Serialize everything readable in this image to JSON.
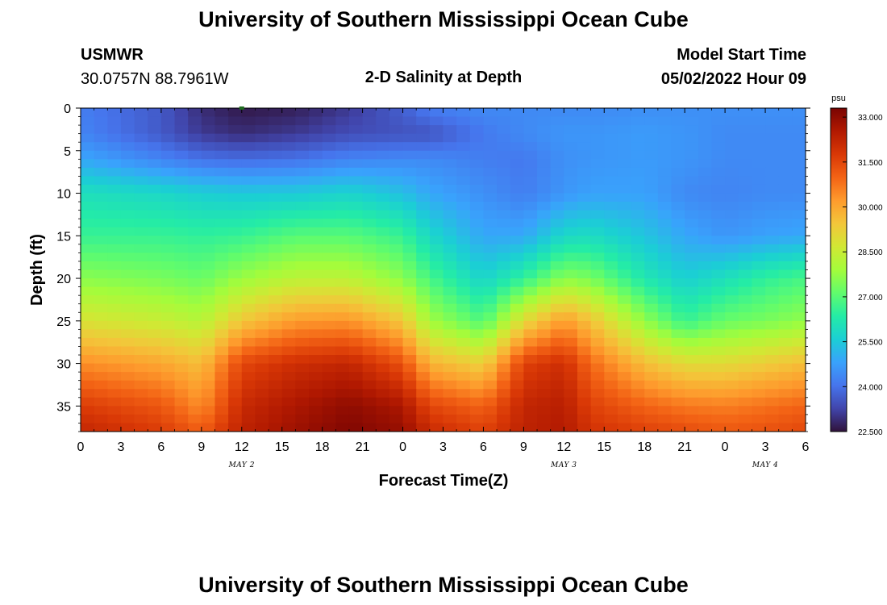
{
  "page": {
    "title": "University of Southern Mississippi Ocean Cube",
    "footer_title": "University of Southern Mississippi Ocean Cube"
  },
  "station": {
    "id": "USMWR",
    "coords": "30.0757N  88.7961W"
  },
  "model": {
    "label": "Model Start Time",
    "start": "05/02/2022 Hour 09"
  },
  "chart_data": {
    "type": "heatmap",
    "title": "2-D Salinity at Depth",
    "xlabel": "Forecast Time(Z)",
    "ylabel": "Depth (ft)",
    "x_ticks": [
      "0",
      "3",
      "6",
      "9",
      "12",
      "15",
      "18",
      "21",
      "0",
      "3",
      "6",
      "9",
      "12",
      "15",
      "18",
      "21",
      "0",
      "3",
      "6"
    ],
    "x_range_hours": [
      0,
      54
    ],
    "y_ticks": [
      "0",
      "5",
      "10",
      "15",
      "20",
      "25",
      "30",
      "35"
    ],
    "y_range_ft": [
      0,
      38
    ],
    "date_labels": [
      {
        "text": "MAY 2",
        "hour": 12
      },
      {
        "text": "MAY 3",
        "hour": 36
      },
      {
        "text": "MAY 4",
        "hour": 51
      }
    ],
    "colorbar": {
      "unit": "psu",
      "min": 22.5,
      "max": 33.3,
      "tick_labels": [
        "33.000",
        "31.500",
        "30.000",
        "28.500",
        "27.000",
        "25.500",
        "24.000",
        "22.500"
      ],
      "tick_values": [
        33.0,
        31.5,
        30.0,
        28.5,
        27.0,
        25.5,
        24.0,
        22.5
      ],
      "colors": [
        "#30123b",
        "#4145ab",
        "#4675ed",
        "#39a2fc",
        "#1bcfd4",
        "#24eca6",
        "#61fc6c",
        "#a4fc3b",
        "#d1e834",
        "#f3c63a",
        "#fe9b2d",
        "#f36315",
        "#d93806",
        "#b11901",
        "#7a0402"
      ]
    },
    "profile_hours": [
      0,
      6,
      9,
      12,
      16,
      20,
      24,
      26,
      30,
      33,
      36,
      38,
      42,
      45,
      48,
      51,
      54
    ],
    "profile_depths_ft": [
      0,
      3,
      6,
      10,
      15,
      20,
      25,
      30,
      35,
      38
    ],
    "salinity_psu": [
      [
        24.2,
        23.6,
        22.9,
        22.6,
        22.7,
        23.1,
        23.7,
        24.2,
        24.4,
        24.4,
        24.4,
        24.4,
        24.5,
        24.5,
        24.5,
        24.5,
        24.5
      ],
      [
        24.3,
        23.6,
        23.1,
        22.9,
        23.1,
        23.4,
        23.5,
        23.5,
        24.1,
        24.4,
        24.6,
        24.6,
        24.7,
        24.6,
        24.4,
        24.4,
        24.4
      ],
      [
        24.9,
        24.3,
        24.0,
        23.9,
        24.0,
        24.3,
        24.4,
        24.4,
        24.2,
        24.1,
        24.5,
        24.6,
        24.7,
        24.6,
        24.4,
        24.4,
        24.4
      ],
      [
        26.0,
        25.8,
        25.6,
        25.5,
        25.5,
        25.7,
        25.3,
        24.9,
        24.5,
        24.2,
        24.6,
        24.8,
        24.8,
        24.4,
        24.3,
        24.4,
        24.4
      ],
      [
        26.6,
        26.6,
        26.5,
        26.6,
        27.0,
        27.0,
        26.6,
        25.8,
        24.9,
        24.9,
        25.8,
        25.9,
        25.4,
        24.9,
        24.6,
        24.8,
        24.9
      ],
      [
        27.6,
        27.4,
        27.2,
        27.8,
        28.3,
        28.3,
        27.6,
        26.8,
        25.7,
        26.5,
        27.6,
        27.4,
        26.2,
        25.6,
        26.0,
        26.5,
        26.8
      ],
      [
        28.8,
        28.5,
        28.2,
        29.4,
        30.2,
        30.3,
        29.4,
        27.9,
        26.9,
        29.0,
        30.2,
        29.5,
        27.7,
        26.6,
        27.2,
        27.4,
        27.7
      ],
      [
        30.4,
        30.0,
        29.6,
        31.5,
        32.0,
        32.2,
        31.3,
        29.8,
        29.2,
        31.6,
        32.0,
        30.9,
        29.6,
        29.0,
        29.0,
        29.3,
        29.6
      ],
      [
        31.7,
        31.2,
        30.4,
        32.1,
        32.6,
        33.0,
        32.6,
        31.5,
        31.0,
        32.2,
        32.4,
        31.6,
        31.0,
        30.7,
        30.6,
        30.8,
        31.0
      ],
      [
        32.2,
        31.7,
        31.1,
        32.3,
        32.8,
        33.2,
        32.9,
        32.1,
        31.6,
        32.3,
        32.5,
        31.9,
        31.6,
        31.4,
        31.2,
        31.3,
        31.5
      ]
    ],
    "marker_hour": 12
  }
}
